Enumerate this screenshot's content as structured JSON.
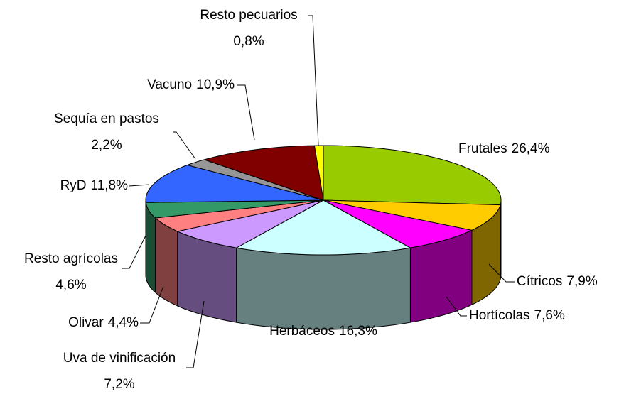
{
  "chart_data": {
    "type": "pie",
    "categories": [
      "Frutales",
      "Cítricos",
      "Hortícolas",
      "Herbáceos",
      "Uva de vinificación",
      "Olivar",
      "Resto agrícolas",
      "RyD",
      "Sequía en pastos",
      "Vacuno",
      "Resto pecuarios"
    ],
    "values": [
      26.4,
      7.9,
      7.6,
      16.3,
      7.2,
      4.4,
      4.6,
      11.8,
      2.2,
      10.9,
      0.8
    ],
    "value_labels": [
      "26,4%",
      "7,9%",
      "7,6%",
      "16,3%",
      "7,2%",
      "4,4%",
      "4,6%",
      "11,8%",
      "2,2%",
      "10,9%",
      "0,8%"
    ],
    "colors": [
      "#99cc00",
      "#ffcc00",
      "#ff00ff",
      "#ccffff",
      "#cc99ff",
      "#ff8080",
      "#339966",
      "#3366ff",
      "#969696",
      "#800000",
      "#ffff00"
    ]
  }
}
